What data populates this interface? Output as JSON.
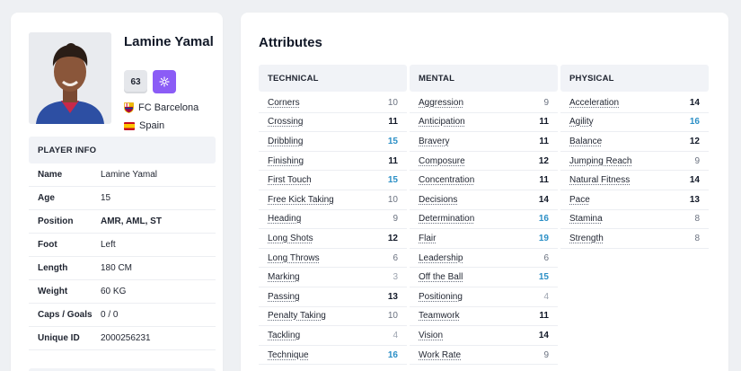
{
  "player": {
    "name": "Lamine Yamal",
    "rating": "63",
    "club": "FC Barcelona",
    "nation": "Spain"
  },
  "player_info": {
    "heading": "PLAYER INFO",
    "rows": [
      {
        "label": "Name",
        "value": "Lamine Yamal"
      },
      {
        "label": "Age",
        "value": "15"
      },
      {
        "label": "Position",
        "value": "AMR, AML, ST"
      },
      {
        "label": "Foot",
        "value": "Left"
      },
      {
        "label": "Length",
        "value": "180 CM"
      },
      {
        "label": "Weight",
        "value": "60 KG"
      },
      {
        "label": "Caps / Goals",
        "value": "0 / 0"
      },
      {
        "label": "Unique ID",
        "value": "2000256231"
      }
    ]
  },
  "attributes": {
    "title": "Attributes",
    "columns": [
      {
        "heading": "TECHNICAL",
        "items": [
          {
            "name": "Corners",
            "value": "10"
          },
          {
            "name": "Crossing",
            "value": "11"
          },
          {
            "name": "Dribbling",
            "value": "15"
          },
          {
            "name": "Finishing",
            "value": "11"
          },
          {
            "name": "First Touch",
            "value": "15"
          },
          {
            "name": "Free Kick Taking",
            "value": "10"
          },
          {
            "name": "Heading",
            "value": "9"
          },
          {
            "name": "Long Shots",
            "value": "12"
          },
          {
            "name": "Long Throws",
            "value": "6"
          },
          {
            "name": "Marking",
            "value": "3"
          },
          {
            "name": "Passing",
            "value": "13"
          },
          {
            "name": "Penalty Taking",
            "value": "10"
          },
          {
            "name": "Tackling",
            "value": "4"
          },
          {
            "name": "Technique",
            "value": "16"
          }
        ]
      },
      {
        "heading": "MENTAL",
        "items": [
          {
            "name": "Aggression",
            "value": "9"
          },
          {
            "name": "Anticipation",
            "value": "11"
          },
          {
            "name": "Bravery",
            "value": "11"
          },
          {
            "name": "Composure",
            "value": "12"
          },
          {
            "name": "Concentration",
            "value": "11"
          },
          {
            "name": "Decisions",
            "value": "14"
          },
          {
            "name": "Determination",
            "value": "16"
          },
          {
            "name": "Flair",
            "value": "19"
          },
          {
            "name": "Leadership",
            "value": "6"
          },
          {
            "name": "Off the Ball",
            "value": "15"
          },
          {
            "name": "Positioning",
            "value": "4"
          },
          {
            "name": "Teamwork",
            "value": "11"
          },
          {
            "name": "Vision",
            "value": "14"
          },
          {
            "name": "Work Rate",
            "value": "9"
          }
        ]
      },
      {
        "heading": "PHYSICAL",
        "items": [
          {
            "name": "Acceleration",
            "value": "14"
          },
          {
            "name": "Agility",
            "value": "16"
          },
          {
            "name": "Balance",
            "value": "12"
          },
          {
            "name": "Jumping Reach",
            "value": "9"
          },
          {
            "name": "Natural Fitness",
            "value": "14"
          },
          {
            "name": "Pace",
            "value": "13"
          },
          {
            "name": "Stamina",
            "value": "8"
          },
          {
            "name": "Strength",
            "value": "8"
          }
        ]
      }
    ]
  },
  "colors": {
    "high_value": "#2b8fc6",
    "trait_badge": "#8b5cf6",
    "header_bg": "#f1f3f7"
  },
  "icons": {
    "trait_badge": "cog-icon",
    "club": "fc-barcelona-crest-icon",
    "nation": "spain-flag-icon"
  }
}
